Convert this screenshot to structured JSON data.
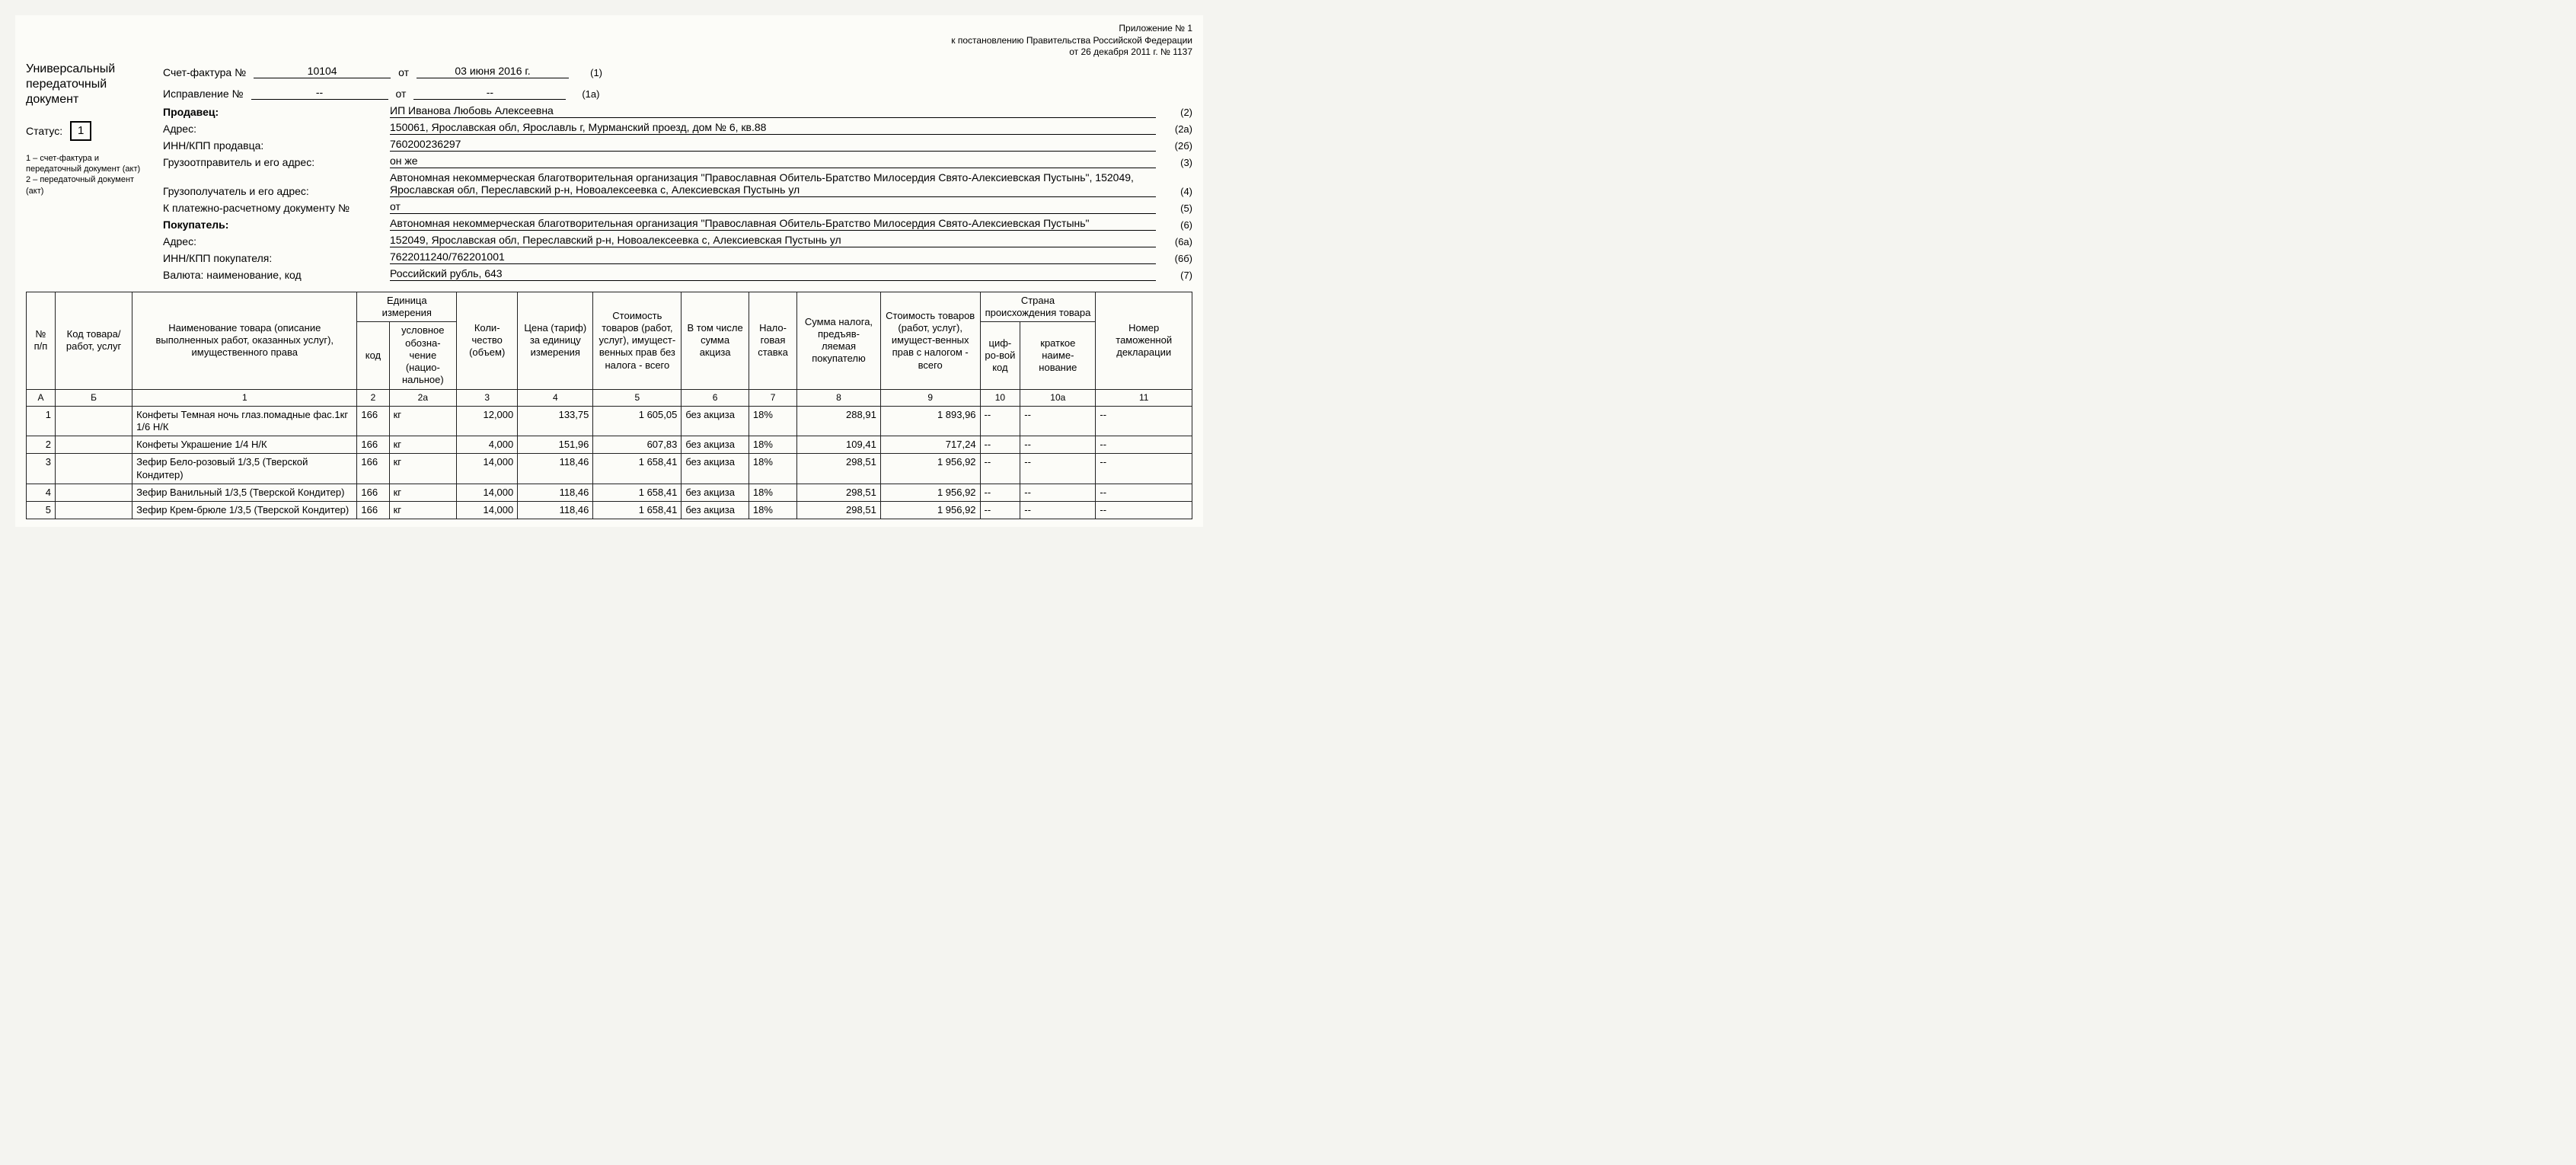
{
  "annex": {
    "line1": "Приложение № 1",
    "line2": "к постановлению Правительства Российской Федерации",
    "line3": "от 26 декабря 2011 г. № 1137"
  },
  "left": {
    "title": "Универсальный передаточный документ",
    "status_label": "Статус:",
    "status_value": "1",
    "legend1": "1 – счет-фактура и передаточный документ (акт)",
    "legend2": "2 – передаточный документ (акт)"
  },
  "header": {
    "invoice_label": "Счет-фактура №",
    "invoice_no": "10104",
    "ot": "от",
    "invoice_date": "03 июня 2016 г.",
    "p1": "(1)",
    "corr_label": "Исправление №",
    "corr_no": "--",
    "corr_date": "--",
    "p1a": "(1а)"
  },
  "info": [
    {
      "label": "Продавец:",
      "bold": true,
      "value": "ИП Иванова Любовь Алексеевна",
      "paren": "(2)"
    },
    {
      "label": "Адрес:",
      "value": "150061, Ярославская обл, Ярославль г, Мурманский проезд, дом № 6, кв.88",
      "paren": "(2а)"
    },
    {
      "label": "ИНН/КПП продавца:",
      "value": "760200236297",
      "paren": "(2б)"
    },
    {
      "label": "Грузоотправитель и его адрес:",
      "value": "он же",
      "paren": "(3)"
    },
    {
      "label": "Грузополучатель и его адрес:",
      "value": "Автономная некоммерческая благотворительная организация \"Православная Обитель-Братство Милосердия Свято-Алексиевская Пустынь\", 152049, Ярославская обл, Переславский р-н, Новоалексеевка с, Алексиевская Пустынь ул",
      "paren": "(4)"
    },
    {
      "label": "К платежно-расчетному документу №",
      "value": "                              от",
      "paren": "(5)"
    },
    {
      "label": "Покупатель:",
      "bold": true,
      "value": "Автономная некоммерческая благотворительная организация \"Православная Обитель-Братство Милосердия Свято-Алексиевская Пустынь\"",
      "paren": "(6)"
    },
    {
      "label": "Адрес:",
      "value": "152049, Ярославская обл, Переславский р-н, Новоалексеевка с, Алексиевская Пустынь ул",
      "paren": "(6а)"
    },
    {
      "label": "ИНН/КПП покупателя:",
      "value": "7622011240/762201001",
      "paren": "(6б)"
    },
    {
      "label": "Валюта: наименование, код",
      "value": "Российский рубль, 643",
      "paren": "(7)"
    }
  ],
  "table": {
    "head": {
      "num": "№ п/п",
      "code": "Код товара/ работ, услуг",
      "name": "Наименование товара (описание выполненных работ, оказанных услуг), имущественного права",
      "unit": "Единица измерения",
      "unit_code": "код",
      "unit_sym": "условное обозна-чение (нацио-нальное)",
      "qty": "Коли-чество (объем)",
      "price": "Цена (тариф) за единицу измерения",
      "cost_no_tax": "Стоимость товаров (работ, услуг), имущест-венных прав без налога - всего",
      "excise": "В том числе сумма акциза",
      "tax_rate": "Нало-говая ставка",
      "tax_sum": "Сумма налога, предъяв-ляемая покупателю",
      "cost_with_tax": "Стоимость товаров (работ, услуг), имущест-венных прав с налогом - всего",
      "country": "Страна происхождения товара",
      "country_code": "циф-ро-вой код",
      "country_name": "краткое наиме-нование",
      "decl": "Номер таможенной декларации"
    },
    "colnums": [
      "А",
      "Б",
      "1",
      "2",
      "2а",
      "3",
      "4",
      "5",
      "6",
      "7",
      "8",
      "9",
      "10",
      "10а",
      "11"
    ],
    "rows": [
      {
        "n": "1",
        "code": "",
        "name": "Конфеты Темная ночь глаз.помадные фас.1кг 1/6 Н/К",
        "ucode": "166",
        "usym": "кг",
        "qty": "12,000",
        "price": "133,75",
        "cost": "1 605,05",
        "excise": "без акциза",
        "rate": "18%",
        "tax": "288,91",
        "total": "1 893,96",
        "cc": "--",
        "cn": "--",
        "decl": "--"
      },
      {
        "n": "2",
        "code": "",
        "name": "Конфеты Украшение 1/4 Н/К",
        "ucode": "166",
        "usym": "кг",
        "qty": "4,000",
        "price": "151,96",
        "cost": "607,83",
        "excise": "без акциза",
        "rate": "18%",
        "tax": "109,41",
        "total": "717,24",
        "cc": "--",
        "cn": "--",
        "decl": "--"
      },
      {
        "n": "3",
        "code": "",
        "name": "Зефир Бело-розовый 1/3,5 (Тверской Кондитер)",
        "ucode": "166",
        "usym": "кг",
        "qty": "14,000",
        "price": "118,46",
        "cost": "1 658,41",
        "excise": "без акциза",
        "rate": "18%",
        "tax": "298,51",
        "total": "1 956,92",
        "cc": "--",
        "cn": "--",
        "decl": "--"
      },
      {
        "n": "4",
        "code": "",
        "name": "Зефир Ванильный 1/3,5 (Тверской Кондитер)",
        "ucode": "166",
        "usym": "кг",
        "qty": "14,000",
        "price": "118,46",
        "cost": "1 658,41",
        "excise": "без акциза",
        "rate": "18%",
        "tax": "298,51",
        "total": "1 956,92",
        "cc": "--",
        "cn": "--",
        "decl": "--"
      },
      {
        "n": "5",
        "code": "",
        "name": "Зефир Крем-брюле 1/3,5 (Тверской Кондитер)",
        "ucode": "166",
        "usym": "кг",
        "qty": "14,000",
        "price": "118,46",
        "cost": "1 658,41",
        "excise": "без акциза",
        "rate": "18%",
        "tax": "298,51",
        "total": "1 956,92",
        "cc": "--",
        "cn": "--",
        "decl": "--"
      }
    ]
  },
  "widths": {
    "num": "36px",
    "code": "96px",
    "name": "280px",
    "ucode": "40px",
    "usym": "84px",
    "qty": "76px",
    "price": "94px",
    "cost": "110px",
    "excise": "84px",
    "rate": "60px",
    "tax": "104px",
    "total": "124px",
    "cc": "50px",
    "cn": "94px",
    "decl": "120px"
  }
}
